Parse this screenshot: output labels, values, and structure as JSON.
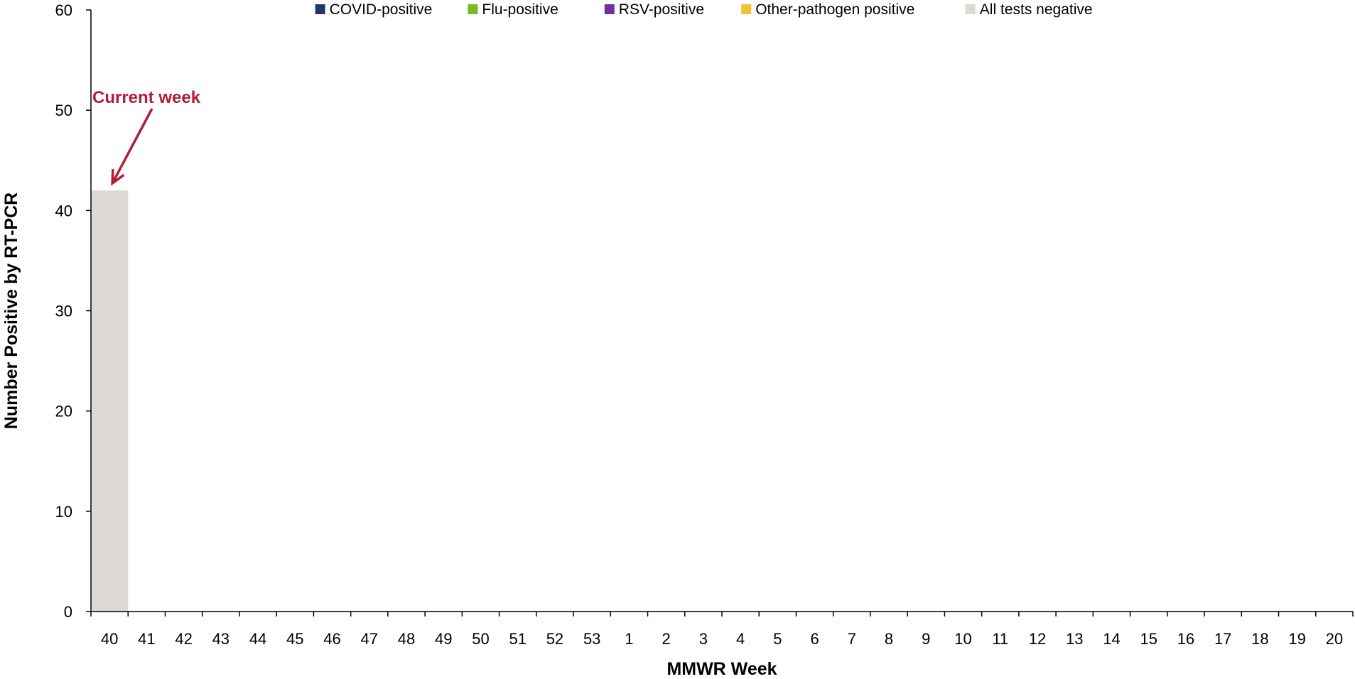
{
  "chart_data": {
    "type": "bar",
    "stacked": true,
    "title": "",
    "xlabel": "MMWR Week",
    "ylabel": "Number Positive by RT-PCR",
    "ylim": [
      0,
      60
    ],
    "yticks": [
      0,
      10,
      20,
      30,
      40,
      50,
      60
    ],
    "categories": [
      "40",
      "41",
      "42",
      "43",
      "44",
      "45",
      "46",
      "47",
      "48",
      "49",
      "50",
      "51",
      "52",
      "53",
      "1",
      "2",
      "3",
      "4",
      "5",
      "6",
      "7",
      "8",
      "9",
      "10",
      "11",
      "12",
      "13",
      "14",
      "15",
      "16",
      "17",
      "18",
      "19",
      "20"
    ],
    "series": [
      {
        "name": "COVID-positive",
        "color": "#1f3864",
        "values": [
          0,
          0,
          0,
          0,
          0,
          0,
          0,
          0,
          0,
          0,
          0,
          0,
          0,
          0,
          0,
          0,
          0,
          0,
          0,
          0,
          0,
          0,
          0,
          0,
          0,
          0,
          0,
          0,
          0,
          0,
          0,
          0,
          0,
          0
        ]
      },
      {
        "name": "Flu-positive",
        "color": "#7ab829",
        "values": [
          0,
          0,
          0,
          0,
          0,
          0,
          0,
          0,
          0,
          0,
          0,
          0,
          0,
          0,
          0,
          0,
          0,
          0,
          0,
          0,
          0,
          0,
          0,
          0,
          0,
          0,
          0,
          0,
          0,
          0,
          0,
          0,
          0,
          0
        ]
      },
      {
        "name": "RSV-positive",
        "color": "#7030a0",
        "values": [
          0,
          0,
          0,
          0,
          0,
          0,
          0,
          0,
          0,
          0,
          0,
          0,
          0,
          0,
          0,
          0,
          0,
          0,
          0,
          0,
          0,
          0,
          0,
          0,
          0,
          0,
          0,
          0,
          0,
          0,
          0,
          0,
          0,
          0
        ]
      },
      {
        "name": "Other-pathogen positive",
        "color": "#f4c136",
        "values": [
          0,
          0,
          0,
          0,
          0,
          0,
          0,
          0,
          0,
          0,
          0,
          0,
          0,
          0,
          0,
          0,
          0,
          0,
          0,
          0,
          0,
          0,
          0,
          0,
          0,
          0,
          0,
          0,
          0,
          0,
          0,
          0,
          0,
          0
        ]
      },
      {
        "name": "All tests negative",
        "color": "#dcd8d4",
        "values": [
          42,
          0,
          0,
          0,
          0,
          0,
          0,
          0,
          0,
          0,
          0,
          0,
          0,
          0,
          0,
          0,
          0,
          0,
          0,
          0,
          0,
          0,
          0,
          0,
          0,
          0,
          0,
          0,
          0,
          0,
          0,
          0,
          0,
          0
        ]
      }
    ],
    "legend_position": "top",
    "grid": false,
    "annotation": {
      "text": "Current week",
      "target_category": "40",
      "color": "#b01e3a"
    }
  }
}
